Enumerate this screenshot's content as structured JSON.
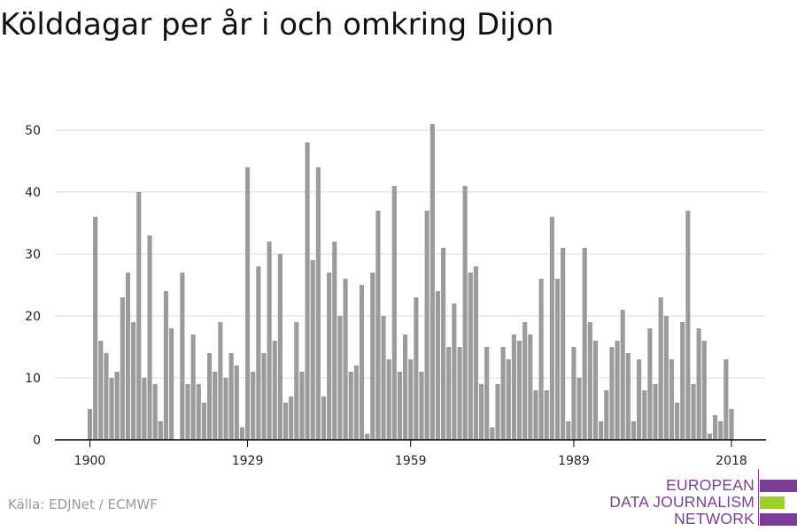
{
  "title": "Kölddagar per år i och omkring Dijon",
  "source": "Källa: EDJNet / ECMWF",
  "logo": {
    "line1": "EUROPEAN",
    "line2": "DATA JOURNALISM",
    "line3": "NETWORK",
    "colors": [
      "#7b3f98",
      "#9bd12a",
      "#7b3f98"
    ]
  },
  "colors": {
    "bar": "#9b9b9b",
    "grid": "#d9d9d9",
    "axis": "#000000"
  },
  "chart_data": {
    "type": "bar",
    "title": "Kölddagar per år i och omkring Dijon",
    "xlabel": "",
    "ylabel": "",
    "ylim": [
      0,
      52
    ],
    "yticks": [
      0,
      10,
      20,
      30,
      40,
      50
    ],
    "xticks": [
      1900,
      1929,
      1959,
      1989,
      2018
    ],
    "grid": true,
    "x": [
      1900,
      1901,
      1902,
      1903,
      1904,
      1905,
      1906,
      1907,
      1908,
      1909,
      1910,
      1911,
      1912,
      1913,
      1914,
      1915,
      1916,
      1917,
      1918,
      1919,
      1920,
      1921,
      1922,
      1923,
      1924,
      1925,
      1926,
      1927,
      1928,
      1929,
      1930,
      1931,
      1932,
      1933,
      1934,
      1935,
      1936,
      1937,
      1938,
      1939,
      1940,
      1941,
      1942,
      1943,
      1944,
      1945,
      1946,
      1947,
      1948,
      1949,
      1950,
      1951,
      1952,
      1953,
      1954,
      1955,
      1956,
      1957,
      1958,
      1959,
      1960,
      1961,
      1962,
      1963,
      1964,
      1965,
      1966,
      1967,
      1968,
      1969,
      1970,
      1971,
      1972,
      1973,
      1974,
      1975,
      1976,
      1977,
      1978,
      1979,
      1980,
      1981,
      1982,
      1983,
      1984,
      1985,
      1986,
      1987,
      1988,
      1989,
      1990,
      1991,
      1992,
      1993,
      1994,
      1995,
      1996,
      1997,
      1998,
      1999,
      2000,
      2001,
      2002,
      2003,
      2004,
      2005,
      2006,
      2007,
      2008,
      2009,
      2010,
      2011,
      2012,
      2013,
      2014,
      2015,
      2016,
      2017,
      2018
    ],
    "values": [
      5,
      36,
      16,
      14,
      10,
      11,
      23,
      27,
      19,
      40,
      10,
      33,
      9,
      3,
      24,
      18,
      0,
      27,
      9,
      17,
      9,
      6,
      14,
      11,
      19,
      10,
      14,
      12,
      2,
      44,
      11,
      28,
      14,
      32,
      16,
      30,
      6,
      7,
      19,
      11,
      48,
      29,
      44,
      7,
      27,
      32,
      20,
      26,
      11,
      12,
      25,
      1,
      27,
      37,
      20,
      13,
      41,
      11,
      17,
      13,
      23,
      11,
      37,
      51,
      24,
      31,
      15,
      22,
      15,
      41,
      27,
      28,
      9,
      15,
      2,
      9,
      15,
      13,
      17,
      16,
      19,
      17,
      8,
      26,
      8,
      36,
      26,
      31,
      3,
      15,
      10,
      31,
      19,
      16,
      3,
      8,
      15,
      16,
      21,
      14,
      3,
      13,
      8,
      18,
      9,
      23,
      20,
      13,
      6,
      19,
      37,
      9,
      18,
      16,
      1,
      4,
      3,
      13,
      5
    ]
  }
}
